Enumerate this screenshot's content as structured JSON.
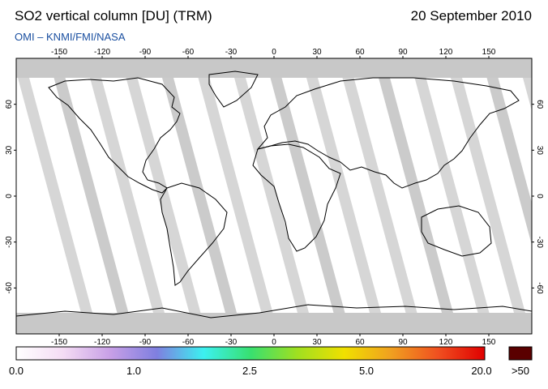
{
  "header": {
    "title": "SO2 vertical column [DU] (TRM)",
    "date": "20 September 2010",
    "credit": "OMI  –  KNMI/FMI/NASA"
  },
  "map": {
    "projection": "equirectangular",
    "lon_range": [
      -180,
      180
    ],
    "lat_range": [
      -90,
      90
    ],
    "lon_ticks": [
      "-150",
      "-120",
      "-90",
      "-60",
      "-30",
      "0",
      "30",
      "60",
      "90",
      "120",
      "150"
    ],
    "lat_ticks_left": [
      "60",
      "30",
      "0",
      "-30",
      "-60"
    ],
    "lat_ticks_right": [
      "60",
      "30",
      "0",
      "-30",
      "-60"
    ],
    "no_data_color": "#c8c8c8",
    "land_outline_color": "#000000"
  },
  "colorbar": {
    "labels": [
      "0.0",
      "1.0",
      "2.5",
      "5.0",
      "20.0"
    ],
    "overflow_label": ">50",
    "overflow_color": "#5a0000",
    "stops": [
      "#ffffff",
      "#f4dcf4",
      "#c8a0e6",
      "#7f7fe0",
      "#3cf0f0",
      "#38e070",
      "#a0e020",
      "#f0e000",
      "#f0a020",
      "#f05020",
      "#e00000"
    ]
  }
}
